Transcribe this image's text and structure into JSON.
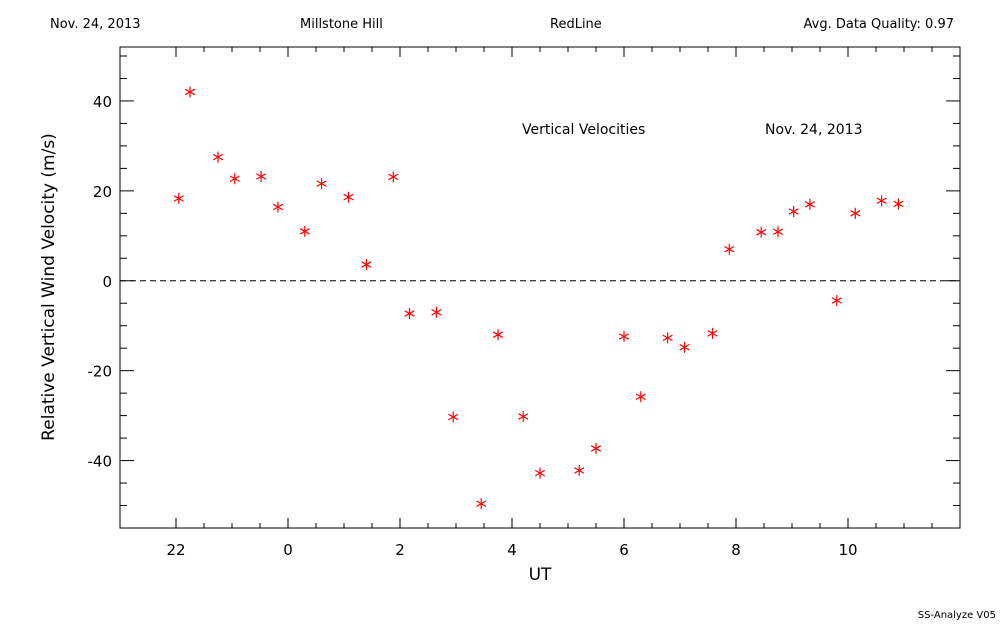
{
  "header": {
    "date": "Nov. 24, 2013",
    "site": "Millstone Hill",
    "instrument": "RedLine",
    "quality": "Avg. Data Quality: 0.97"
  },
  "footer": {
    "version": "SS-Analyze V05"
  },
  "chart_data": {
    "type": "scatter",
    "annotations": [
      "Vertical Velocities",
      "Nov. 24, 2013"
    ],
    "xlabel": "UT",
    "ylabel": "Relative Vertical Wind Velocity (m/s)",
    "xlim": [
      -3,
      12
    ],
    "ylim": [
      -55,
      52
    ],
    "x_ticks": [
      22,
      0,
      2,
      4,
      6,
      8,
      10
    ],
    "y_ticks": [
      40,
      20,
      0,
      -20,
      -40
    ],
    "zero_line": "dashed",
    "marker": "asterisk",
    "marker_color": "#ff0000",
    "series": [
      {
        "x": [
          -1.95,
          -1.75,
          -1.25,
          -0.95,
          -0.48,
          -0.18,
          0.3,
          0.6,
          1.08,
          1.4,
          1.88,
          2.17,
          2.65,
          2.95,
          3.45,
          3.75,
          4.2,
          4.5,
          5.2,
          5.5,
          6.0,
          6.3,
          6.78,
          7.08,
          7.58,
          7.88,
          8.45,
          8.75,
          9.03,
          9.32,
          9.8,
          10.13,
          10.6,
          10.9
        ],
        "y": [
          18.3,
          42.0,
          27.5,
          22.7,
          23.2,
          16.4,
          11.0,
          21.6,
          18.6,
          3.6,
          23.1,
          -7.3,
          -7.0,
          -30.3,
          -49.6,
          -12.0,
          -30.2,
          -42.8,
          -42.2,
          -37.3,
          -12.4,
          -25.8,
          -12.7,
          -14.8,
          -11.7,
          7.0,
          10.8,
          10.9,
          15.4,
          17.0,
          -4.4,
          15.0,
          17.8,
          17.1
        ]
      }
    ]
  }
}
